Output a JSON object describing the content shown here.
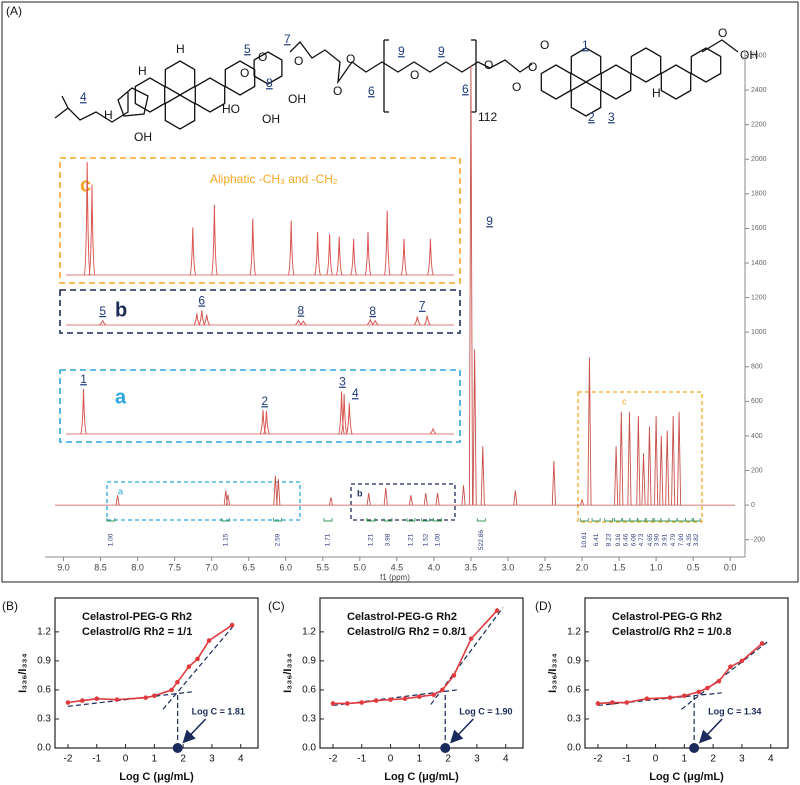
{
  "panel_labels": [
    "(A)",
    "(B)",
    "(C)",
    "(D)"
  ],
  "structure": {
    "labels": [
      "H",
      "5",
      "O",
      "7",
      "O",
      "O",
      "8",
      "HO",
      "OH",
      "OH",
      "O",
      "O",
      "6",
      "9",
      "O",
      "9",
      "6",
      "112",
      "O",
      "O",
      "O",
      "O",
      "1",
      "OH",
      "O",
      "2",
      "3",
      "H",
      "H",
      "H",
      "OH",
      "4"
    ]
  },
  "chart_data": [
    {
      "type": "spectrum",
      "xlabel": "f1 (ppm)",
      "color": "#c8504a",
      "xlim": [
        9.25,
        -0.2
      ],
      "xticks": [
        {
          "value": 9,
          "label": "9.0"
        },
        8.5,
        {
          "value": 8,
          "label": "8.0"
        },
        7.5,
        {
          "value": 7,
          "label": "7.0"
        },
        6.5,
        {
          "value": 6,
          "label": "6.0"
        },
        5.5,
        {
          "value": 5,
          "label": "5.0"
        },
        4.5,
        {
          "value": 4,
          "label": "4.0"
        },
        3.5,
        {
          "value": 3,
          "label": "3.0"
        },
        2.5,
        {
          "value": 2,
          "label": "2.0"
        },
        1.5,
        {
          "value": 1,
          "label": "1.0"
        },
        0.5,
        {
          "value": 0,
          "label": "0.0"
        }
      ],
      "y2lim": [
        -300,
        2620
      ],
      "y2ticks": [
        -200,
        0,
        200,
        400,
        600,
        800,
        1000,
        1200,
        1400,
        1600,
        1800,
        2000,
        2200,
        2400,
        2600
      ],
      "x": [
        8.27,
        6.81,
        6.78,
        6.14,
        6.1,
        5.39,
        4.88,
        4.65,
        4.31,
        4.11,
        3.95,
        3.6,
        3.5,
        3.45,
        3.34,
        2.9,
        2.38,
        2.0,
        1.9,
        1.54,
        1.47,
        1.36,
        1.24,
        1.17,
        1.09,
        1.0,
        0.93,
        0.85,
        0.77,
        0.69
      ],
      "values": [
        57,
        85,
        60,
        170,
        150,
        45,
        70,
        100,
        57,
        70,
        70,
        115,
        2540,
        900,
        340,
        85,
        255,
        30,
        855,
        340,
        540,
        540,
        515,
        300,
        455,
        515,
        400,
        430,
        515,
        540
      ],
      "peak_labels": {
        "x": [
          3.45
        ],
        "labels": [
          "9"
        ]
      },
      "integrals": {
        "x": [
          8.36,
          6.81,
          6.11,
          5.43,
          4.85,
          4.62,
          4.31,
          4.11,
          3.95,
          3.36,
          1.97,
          1.81,
          1.64,
          1.51,
          1.41,
          1.3,
          1.2,
          1.08,
          0.99,
          0.88,
          0.77,
          0.66,
          0.55,
          0.46
        ],
        "values": [
          1,
          1.15,
          2.59,
          1.71,
          1.21,
          3.98,
          1.21,
          1.52,
          1,
          522.86,
          10.61,
          6.41,
          8.23,
          9.16,
          6.46,
          6.08,
          4.73,
          4.65,
          3.9,
          3.91,
          4.79,
          7.9,
          4.35,
          3.82
        ],
        "value_labels": [
          "1.00",
          "1.15",
          "2.59",
          "1.71",
          "1.21",
          "3.98",
          "1.21",
          "1.52",
          "1.00",
          "522.86",
          "10.61",
          "6.41",
          "8.23",
          "9.16",
          "6.46",
          "6.08",
          "4.73",
          "4.65",
          "3.90",
          "3.91",
          "4.79",
          "7.90",
          "4.35",
          "3.82"
        ]
      },
      "insets": [
        {
          "label": "a",
          "color": "#2aa6dd",
          "xlim": [
            8.45,
            4.0
          ],
          "ylim": [
            0,
            100
          ],
          "x": [
            8.27,
            6.19,
            6.15,
            5.28,
            5.25,
            5.19,
            4.22
          ],
          "values": [
            90,
            48,
            46,
            85,
            80,
            62,
            10
          ],
          "peak_labels": {
            "x": [
              8.27,
              6.17,
              5.27,
              5.19
            ],
            "labels": [
              "1",
              "2",
              "3",
              "4"
            ]
          }
        },
        {
          "label": "b",
          "color": "#1d2b57",
          "xlim": [
            5.45,
            3.9
          ],
          "ylim": [
            0,
            100
          ],
          "x": [
            5.31,
            4.93,
            4.91,
            4.89,
            4.52,
            4.5,
            4.23,
            4.21,
            4.04,
            4.0
          ],
          "values": [
            20,
            55,
            70,
            50,
            22,
            18,
            25,
            20,
            40,
            45
          ],
          "peak_labels": {
            "x": [
              5.31,
              4.91,
              4.51,
              4.22,
              4.02
            ],
            "labels": [
              "5",
              "6",
              "8",
              "8",
              "7"
            ]
          }
        },
        {
          "label": "c",
          "color": "#f5a623",
          "note": "Aliphatic -CH₃ and -CH₂",
          "xlim": [
            2.15,
            0.55
          ],
          "ylim": [
            0,
            100
          ],
          "x": [
            2.07,
            2.05,
            1.63,
            1.54,
            1.38,
            1.22,
            1.11,
            1.06,
            1.02,
            0.96,
            0.9,
            0.82,
            0.75,
            0.64
          ],
          "values": [
            100,
            80,
            42,
            62,
            50,
            48,
            38,
            36,
            34,
            32,
            38,
            57,
            32,
            32
          ]
        }
      ]
    },
    {
      "type": "line",
      "title": [
        "Celastrol-PEG-G Rh2",
        "Celastrol/G Rh2 = 1/1"
      ],
      "xlabel": "Log C (μg/mL)",
      "ylabel": "I₃₃₆/I₃₃₄",
      "color": "#e03a3e",
      "fit_color": "#1a2a5a",
      "xlim": [
        -2.45,
        4.6
      ],
      "ylim": [
        0,
        1.55
      ],
      "xticks": [
        -2,
        -1,
        0,
        1,
        2,
        3,
        4
      ],
      "yticks": [
        {
          "value": 0,
          "label": "0.0"
        },
        0.3,
        0.6,
        0.9,
        1.2
      ],
      "x": [
        -2,
        -1.5,
        -1,
        -0.3,
        0.7,
        1.0,
        1.6,
        1.8,
        2.2,
        2.5,
        2.9,
        3.7
      ],
      "values": [
        0.47,
        0.49,
        0.51,
        0.5,
        0.52,
        0.54,
        0.6,
        0.68,
        0.84,
        0.92,
        1.11,
        1.27
      ],
      "fit_lines": [
        {
          "x": [
            -2,
            2.3
          ],
          "values": [
            0.43,
            0.58
          ]
        },
        {
          "x": [
            1.3,
            3.8
          ],
          "values": [
            0.4,
            1.28
          ]
        }
      ],
      "cmc_x": 1.81,
      "annotation": "Log C = 1.81"
    },
    {
      "type": "line",
      "title": [
        "Celastrol-PEG-G Rh2",
        "Celastrol/G Rh2 = 0.8/1"
      ],
      "xlabel": "Log C (μg/mL)",
      "ylabel": "I₃₃₆/I₃₃₄",
      "color": "#e03a3e",
      "fit_color": "#1a2a5a",
      "xlim": [
        -2.45,
        4.6
      ],
      "ylim": [
        0,
        1.55
      ],
      "xticks": [
        -2,
        -1,
        0,
        1,
        2,
        3,
        4
      ],
      "yticks": [
        {
          "value": 0,
          "label": "0.0"
        },
        0.3,
        0.6,
        0.9,
        1.2
      ],
      "x": [
        -2,
        -1.5,
        -1,
        -0.5,
        0,
        0.5,
        1,
        1.5,
        1.8,
        2.2,
        2.8,
        3.7
      ],
      "values": [
        0.46,
        0.46,
        0.47,
        0.49,
        0.5,
        0.51,
        0.53,
        0.55,
        0.6,
        0.75,
        1.13,
        1.42
      ],
      "fit_lines": [
        {
          "x": [
            -2,
            2.3
          ],
          "values": [
            0.44,
            0.6
          ]
        },
        {
          "x": [
            1.4,
            3.9
          ],
          "values": [
            0.45,
            1.45
          ]
        }
      ],
      "cmc_x": 1.9,
      "annotation": "Log C = 1.90"
    },
    {
      "type": "line",
      "title": [
        "Celastrol-PEG-G Rh2",
        "Celastrol/G Rh2 = 1/0.8"
      ],
      "xlabel": "Log C (μg/mL)",
      "ylabel": "I₃₃₆/I₃₃₄",
      "color": "#e03a3e",
      "fit_color": "#1a2a5a",
      "xlim": [
        -2.45,
        4.6
      ],
      "ylim": [
        0,
        1.55
      ],
      "xticks": [
        -2,
        -1,
        0,
        1,
        2,
        3,
        4
      ],
      "yticks": [
        {
          "value": 0,
          "label": "0.0"
        },
        0.3,
        0.6,
        0.9,
        1.2
      ],
      "x": [
        -2,
        -1.5,
        -1,
        -0.3,
        0.5,
        1,
        1.5,
        1.8,
        2.2,
        2.6,
        3,
        3.7
      ],
      "values": [
        0.46,
        0.47,
        0.47,
        0.51,
        0.52,
        0.54,
        0.58,
        0.62,
        0.69,
        0.84,
        0.9,
        1.08
      ],
      "fit_lines": [
        {
          "x": [
            -2,
            2.3
          ],
          "values": [
            0.44,
            0.57
          ]
        },
        {
          "x": [
            0.9,
            3.9
          ],
          "values": [
            0.4,
            1.1
          ]
        }
      ],
      "cmc_x": 1.34,
      "annotation": "Log C = 1.34"
    }
  ]
}
